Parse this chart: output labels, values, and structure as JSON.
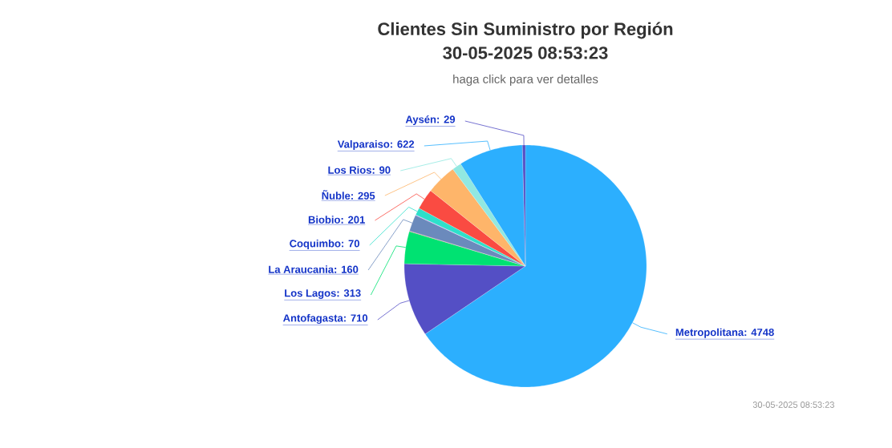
{
  "chart_data": {
    "type": "pie",
    "title": "Clientes Sin Suministro por Región",
    "subtitle": "haga click para ver detalles",
    "annotations": [
      "30-05-2025 08:53:23",
      "30-05-2025 08:53:23"
    ],
    "categories": [
      "Metropolitana",
      "Antofagasta",
      "Los Lagos",
      null,
      "La Araucania",
      null,
      "Coquimbo",
      "Biobio",
      "Ñuble",
      "Los Rios",
      "Valparaiso",
      "Aysén"
    ],
    "values": [
      4748,
      710,
      313,
      5,
      160,
      5,
      70,
      201,
      295,
      90,
      622,
      29
    ],
    "colors": [
      "#2caffe",
      "#544fc5",
      "#00e272",
      "#fe6a35",
      "#6b8abc",
      "#d568fb",
      "#2ee0ca",
      "#fa4b42",
      "#feb56a",
      "#91e8e1",
      "#2caffe",
      "#544fc5"
    ],
    "value_labels": [
      ": 4748",
      ": 710",
      ": 313",
      null,
      ": 160",
      null,
      ": 70",
      ": 201",
      ": 295",
      ": 90",
      ": 622",
      ": 29"
    ]
  }
}
